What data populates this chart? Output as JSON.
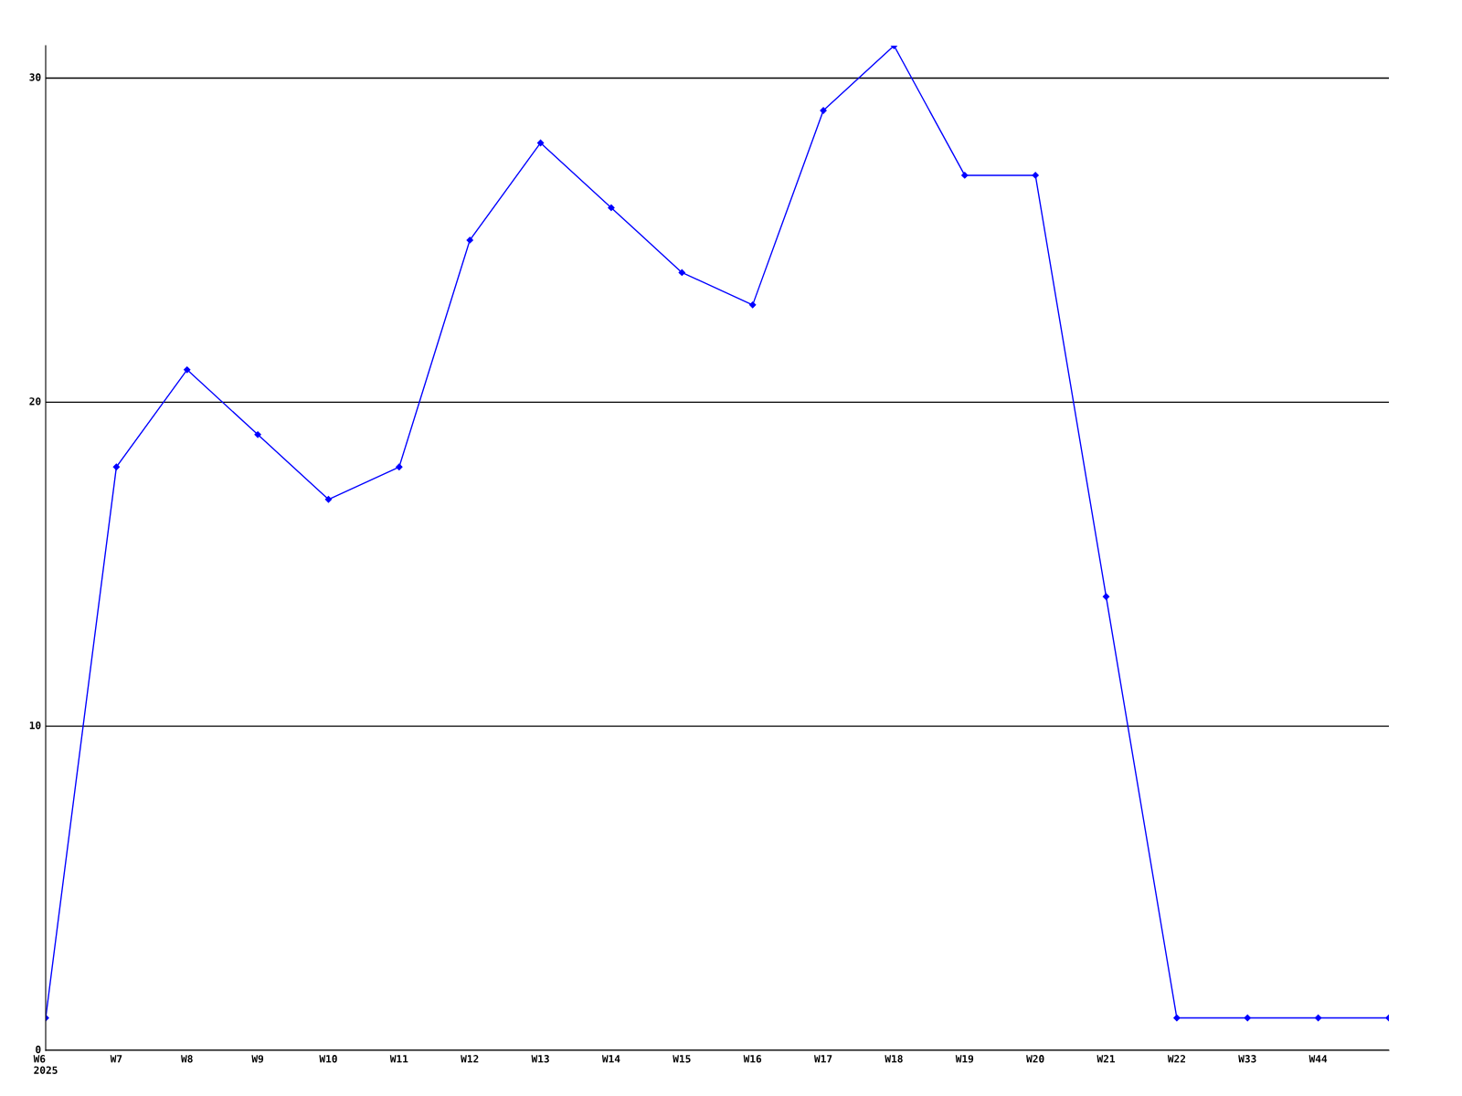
{
  "chart_data": {
    "type": "line",
    "categories": [
      "W6\n2025",
      "W7",
      "W8",
      "W9",
      "W10",
      "W11",
      "W12",
      "W13",
      "W14",
      "W15",
      "W16",
      "W17",
      "W18",
      "W19",
      "W20",
      "W21",
      "W22",
      "W33",
      "W44",
      null
    ],
    "series": [
      {
        "color": "#0000ff",
        "values": [
          1,
          18,
          21,
          19,
          17,
          18,
          25,
          28,
          26,
          24,
          23,
          29,
          31,
          27,
          27,
          14,
          1,
          1,
          1,
          1
        ]
      }
    ],
    "ylim": [
      0,
      31
    ],
    "yticks": [
      0,
      10,
      20,
      30
    ],
    "grid": "y",
    "marker": "diamond",
    "line_style": "solid"
  }
}
